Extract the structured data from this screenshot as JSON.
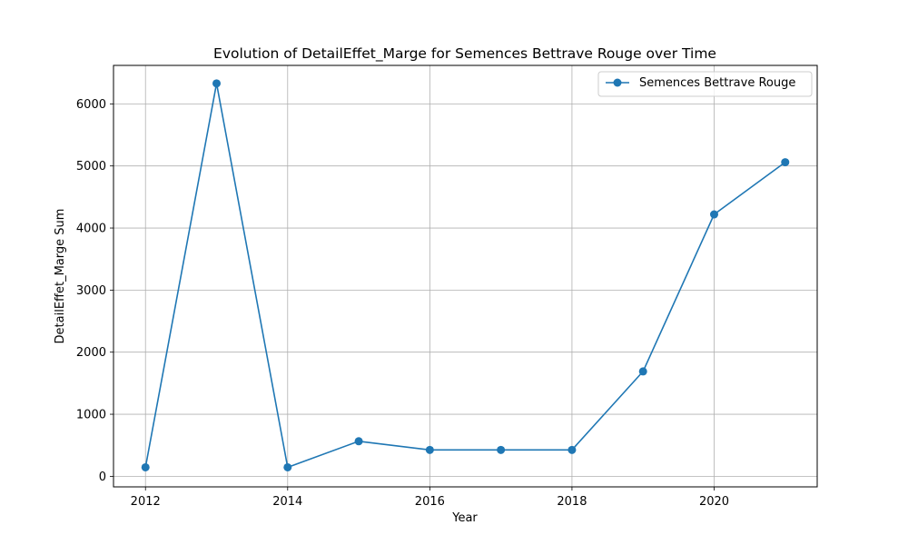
{
  "chart_data": {
    "type": "line",
    "title": "Evolution of DetailEffet_Marge for Semences Bettrave Rouge over Time",
    "xlabel": "Year",
    "ylabel": "DetailEffet_Marge Sum",
    "xlim": [
      2011.55,
      2021.45
    ],
    "ylim": [
      -170,
      6620
    ],
    "xticks": [
      2012,
      2014,
      2016,
      2018,
      2020
    ],
    "yticks": [
      0,
      1000,
      2000,
      3000,
      4000,
      5000,
      6000
    ],
    "grid": true,
    "legend_position": "top-right",
    "x": [
      2012,
      2013,
      2014,
      2015,
      2016,
      2017,
      2018,
      2019,
      2020,
      2021
    ],
    "series": [
      {
        "name": "Semences Bettrave Rouge",
        "color": "#1f77b4",
        "marker": "circle",
        "values": [
          145,
          6330,
          145,
          565,
          425,
          425,
          425,
          1690,
          4220,
          5060
        ]
      }
    ]
  }
}
